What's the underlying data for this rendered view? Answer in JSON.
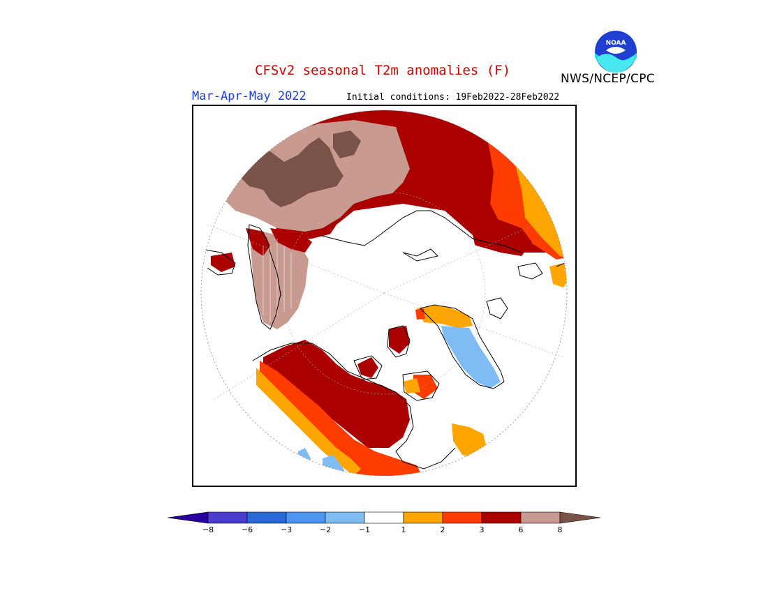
{
  "header": {
    "title": "CFSv2 seasonal T2m anomalies (F)",
    "agency": "NWS/NCEP/CPC",
    "season": "Mar-Apr-May 2022",
    "initial_conditions": "Initial conditions: 19Feb2022-28Feb2022"
  },
  "logo": {
    "text": "NOAA",
    "icon": "noaa-logo"
  },
  "colorbar": {
    "colors": [
      "#2a00a0",
      "#4a3ccc",
      "#2a6ad8",
      "#4a96f0",
      "#80bcf4",
      "#ffffff",
      "#ffa500",
      "#ff3c00",
      "#aa0000",
      "#c89a90",
      "#7a5248"
    ],
    "tick_labels": [
      "-8",
      "-6",
      "-3",
      "-2",
      "-1",
      "1",
      "2",
      "3",
      "6",
      "8"
    ]
  },
  "map": {
    "projection": "polar stereographic (North Pole)",
    "colors": {
      "extreme_warm": "#7a5248",
      "very_warm": "#c89a90",
      "warm_6": "#aa0000",
      "warm_3": "#ff3c00",
      "warm_2": "#ffa500",
      "cool_2": "#80bcf4",
      "coast": "#000000"
    }
  }
}
